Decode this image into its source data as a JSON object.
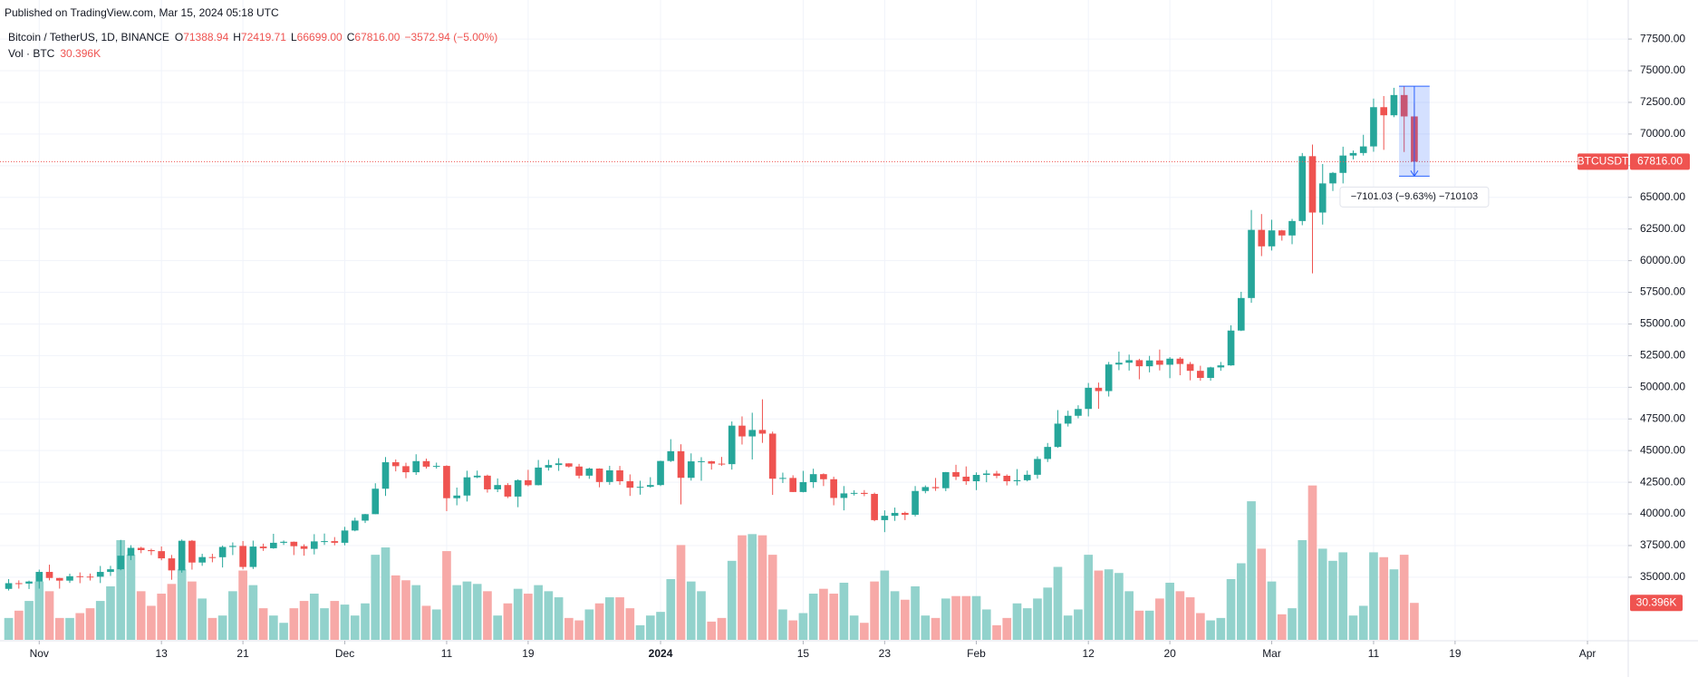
{
  "header": "Published on TradingView.com, Mar 15, 2024 05:18 UTC",
  "chart_data": {
    "type": "candlestick",
    "legend_symbol": "Bitcoin / TetherUS, 1D, BINANCE",
    "legend_ohlc": [
      {
        "key": "O",
        "text": "71388.94"
      },
      {
        "key": "H",
        "text": "72419.71"
      },
      {
        "key": "L",
        "text": "66699.00"
      },
      {
        "key": "C",
        "text": "67816.00"
      }
    ],
    "legend_change": "−3572.94 (−5.00%)",
    "volume_legend": "Vol · BTC",
    "symbol_tag": "BTCUSDT",
    "last_price": {
      "value": 67816,
      "label": "67816.00"
    },
    "volume_label": {
      "value": 30.396,
      "label": "30.396K"
    },
    "up_color": "#26a69a",
    "down_color": "#ef5350",
    "volume_up_color": "#92d2cc",
    "volume_down_color": "#f7a9a7",
    "grid": true,
    "xlim": [
      -0.85,
      159
    ],
    "ylim": [
      30055,
      78437
    ],
    "volume_ylim": [
      0,
      504
    ],
    "xticks": [
      {
        "value": 3,
        "label": "Nov"
      },
      {
        "value": 15,
        "label": "13"
      },
      {
        "value": 23,
        "label": "21"
      },
      {
        "value": 33,
        "label": "Dec"
      },
      {
        "value": 43,
        "label": "11"
      },
      {
        "value": 51,
        "label": "19"
      },
      {
        "value": 64,
        "label": "2024",
        "bold": true
      },
      {
        "value": 78,
        "label": "15"
      },
      {
        "value": 86,
        "label": "23"
      },
      {
        "value": 95,
        "label": "Feb"
      },
      {
        "value": 106,
        "label": "12"
      },
      {
        "value": 114,
        "label": "20"
      },
      {
        "value": 124,
        "label": "Mar"
      },
      {
        "value": 134,
        "label": "11"
      },
      {
        "value": 142,
        "label": "19"
      },
      {
        "value": 155,
        "label": "Apr"
      }
    ],
    "yticks": [
      {
        "value": 35000,
        "label": "35000.00"
      },
      {
        "value": 37500,
        "label": "37500.00"
      },
      {
        "value": 40000,
        "label": "40000.00"
      },
      {
        "value": 42500,
        "label": "42500.00"
      },
      {
        "value": 45000,
        "label": "45000.00"
      },
      {
        "value": 47500,
        "label": "47500.00"
      },
      {
        "value": 50000,
        "label": "50000.00"
      },
      {
        "value": 52500,
        "label": "52500.00"
      },
      {
        "value": 55000,
        "label": "55000.00"
      },
      {
        "value": 57500,
        "label": "57500.00"
      },
      {
        "value": 60000,
        "label": "60000.00"
      },
      {
        "value": 62500,
        "label": "62500.00"
      },
      {
        "value": 65000,
        "label": "65000.00"
      },
      {
        "value": 67500,
        "label": "67500.00"
      },
      {
        "value": 70000,
        "label": "70000.00"
      },
      {
        "value": 72500,
        "label": "72500.00"
      },
      {
        "value": 75000,
        "label": "75000.00"
      },
      {
        "value": 77500,
        "label": "77500.00"
      }
    ],
    "open": [
      34080,
      34530,
      34500,
      34660,
      35420,
      34940,
      34730,
      35080,
      35050,
      35040,
      35420,
      35630,
      36700,
      37320,
      37140,
      37060,
      36490,
      35540,
      37880,
      36160,
      36590,
      36580,
      37390,
      37470,
      35810,
      37420,
      37290,
      37720,
      37800,
      37450,
      37240,
      37830,
      37850,
      37720,
      38690,
      39470,
      39980,
      41990,
      44080,
      43770,
      43290,
      44170,
      43730,
      43790,
      41240,
      41450,
      42890,
      43020,
      41940,
      42280,
      41370,
      42660,
      42270,
      43660,
      43860,
      43990,
      43740,
      43020,
      43580,
      42520,
      43440,
      42580,
      42070,
      42140,
      42280,
      44180,
      44950,
      42850,
      44150,
      44160,
      43970,
      43930,
      46970,
      46120,
      46630,
      46340,
      42780,
      42840,
      41730,
      42510,
      43140,
      42740,
      41260,
      41620,
      41660,
      41580,
      39510,
      39850,
      40080,
      39930,
      41810,
      42120,
      42030,
      43300,
      42940,
      42580,
      43080,
      43190,
      43010,
      42580,
      42660,
      43090,
      44340,
      45290,
      47130,
      47750,
      48290,
      49960,
      49700,
      51800,
      51940,
      52140,
      51660,
      52120,
      51780,
      52260,
      51840,
      51300,
      50740,
      51570,
      51730,
      54480,
      57050,
      62430,
      61130,
      62390,
      61990,
      63130,
      68250,
      63800,
      66100,
      66930,
      68300,
      68500,
      69020,
      72120,
      71480,
      73080,
      71388.94
    ],
    "high": [
      34850,
      34750,
      34730,
      35600,
      35990,
      34950,
      35280,
      35380,
      35290,
      35890,
      35900,
      37950,
      37530,
      37400,
      37250,
      37430,
      36760,
      37980,
      37940,
      36850,
      36850,
      37500,
      37750,
      37860,
      37890,
      37650,
      38430,
      37900,
      37820,
      37600,
      38400,
      38450,
      38170,
      38980,
      39700,
      40000,
      42420,
      44490,
      44300,
      44040,
      44710,
      44370,
      44050,
      43840,
      42080,
      43410,
      43420,
      43100,
      42800,
      42430,
      42730,
      43480,
      44260,
      44270,
      44400,
      44000,
      43950,
      43650,
      43600,
      43800,
      43790,
      43120,
      42620,
      42900,
      44200,
      45900,
      45500,
      44780,
      44480,
      44190,
      44500,
      47300,
      47700,
      47990,
      49050,
      46500,
      43260,
      43050,
      43400,
      43570,
      43200,
      42940,
      42200,
      41870,
      41880,
      41680,
      40280,
      40500,
      40180,
      42200,
      42250,
      42840,
      43310,
      43880,
      43750,
      43280,
      43460,
      43400,
      43120,
      43540,
      43420,
      44540,
      45600,
      48200,
      48150,
      48580,
      50340,
      50370,
      52000,
      52820,
      52580,
      52250,
      52480,
      52980,
      52380,
      52380,
      52000,
      51700,
      51620,
      52000,
      54900,
      57540,
      64000,
      63680,
      63230,
      62430,
      63300,
      68500,
      69170,
      67630,
      67000,
      69000,
      68700,
      69940,
      72800,
      73000,
      73650,
      73780,
      72419.71
    ],
    "low": [
      33950,
      34100,
      34070,
      34100,
      34750,
      34100,
      34550,
      34530,
      34740,
      34540,
      35100,
      35550,
      36350,
      36900,
      36750,
      36340,
      34800,
      35360,
      35600,
      35900,
      36180,
      35770,
      36750,
      35630,
      35650,
      37080,
      37250,
      37550,
      36750,
      36700,
      36800,
      37550,
      37520,
      37520,
      38630,
      39280,
      39980,
      41420,
      43360,
      42820,
      43080,
      43580,
      43580,
      40220,
      40680,
      40980,
      42820,
      41680,
      41720,
      41250,
      40530,
      42180,
      42250,
      43420,
      43400,
      43660,
      42800,
      42770,
      42100,
      42300,
      42300,
      41420,
      41520,
      42070,
      42200,
      44100,
      40750,
      42630,
      42620,
      43500,
      43800,
      43500,
      45480,
      44300,
      45610,
      41500,
      42440,
      41720,
      41700,
      42050,
      42200,
      40680,
      40280,
      41450,
      41400,
      39420,
      38560,
      39450,
      39510,
      39800,
      41630,
      41820,
      41800,
      42680,
      42300,
      41880,
      42500,
      42820,
      42250,
      42250,
      42570,
      42780,
      44100,
      45220,
      46900,
      47550,
      47700,
      48300,
      49270,
      51350,
      51320,
      50630,
      51180,
      51330,
      50720,
      50950,
      50550,
      50520,
      50520,
      51300,
      51700,
      54440,
      56670,
      60360,
      60800,
      61580,
      61300,
      62800,
      59000,
      62850,
      65500,
      66100,
      68000,
      68300,
      68600,
      68750,
      71330,
      68580,
      66699
    ],
    "close": [
      34530,
      34500,
      34660,
      35420,
      34940,
      34730,
      35080,
      35050,
      35040,
      35420,
      35630,
      36700,
      37320,
      37140,
      37060,
      36490,
      35540,
      37880,
      36160,
      36590,
      36580,
      37390,
      37470,
      35810,
      37420,
      37290,
      37720,
      37800,
      37450,
      37240,
      37830,
      37850,
      37720,
      38690,
      39470,
      39980,
      41990,
      44080,
      43770,
      43290,
      44170,
      43730,
      43790,
      41240,
      41450,
      42890,
      43020,
      41940,
      42280,
      41370,
      42660,
      42270,
      43660,
      43860,
      43990,
      43740,
      43020,
      43580,
      42520,
      43440,
      42580,
      42070,
      42140,
      42280,
      44180,
      44950,
      42850,
      44150,
      44160,
      43970,
      43930,
      46970,
      46120,
      46630,
      46340,
      42780,
      42840,
      41730,
      42510,
      43140,
      42740,
      41260,
      41620,
      41660,
      41580,
      39510,
      39850,
      40080,
      39930,
      41810,
      42120,
      42030,
      43300,
      42940,
      42580,
      43080,
      43190,
      43010,
      42580,
      42660,
      43090,
      44340,
      45290,
      47130,
      47750,
      48290,
      49960,
      49700,
      51800,
      51940,
      52140,
      51660,
      52120,
      51780,
      52260,
      51840,
      51300,
      50740,
      51570,
      51730,
      54480,
      57050,
      62430,
      61130,
      62390,
      61990,
      63130,
      68250,
      63800,
      66100,
      66930,
      68300,
      68500,
      69020,
      72120,
      71480,
      73080,
      71388.94,
      67816
    ],
    "volume": [
      18,
      24,
      32,
      48,
      40,
      18,
      18,
      22,
      26,
      32,
      44,
      82,
      70,
      40,
      28,
      38,
      46,
      58,
      48,
      34,
      18,
      20,
      40,
      57,
      45,
      26,
      20,
      14,
      26,
      32,
      38,
      26,
      32,
      29,
      20,
      30,
      70,
      76,
      53,
      49,
      45,
      28,
      25,
      73,
      45,
      48,
      46,
      40,
      20,
      30,
      42,
      38,
      45,
      40,
      35,
      18,
      16,
      25,
      30,
      35,
      35,
      26,
      12,
      20,
      23,
      50,
      78,
      48,
      40,
      15,
      18,
      65,
      86,
      87,
      86,
      70,
      25,
      16,
      22,
      38,
      42,
      38,
      47,
      20,
      14,
      48,
      57,
      40,
      33,
      44,
      20,
      18,
      34,
      36,
      36,
      36,
      25,
      12,
      18,
      30,
      26,
      34,
      43,
      60,
      20,
      25,
      70,
      57,
      58,
      55,
      40,
      24,
      24,
      34,
      47,
      40,
      35,
      22,
      16,
      18,
      50,
      63,
      114,
      75,
      48,
      21,
      26,
      82,
      127,
      75,
      65,
      72,
      20,
      28,
      72,
      68,
      58,
      70,
      30.396
    ],
    "measure": {
      "from": 73777,
      "to": 66676,
      "label": "−7101.03 (−9.63%) −710103",
      "start": 137,
      "end": 140
    }
  }
}
